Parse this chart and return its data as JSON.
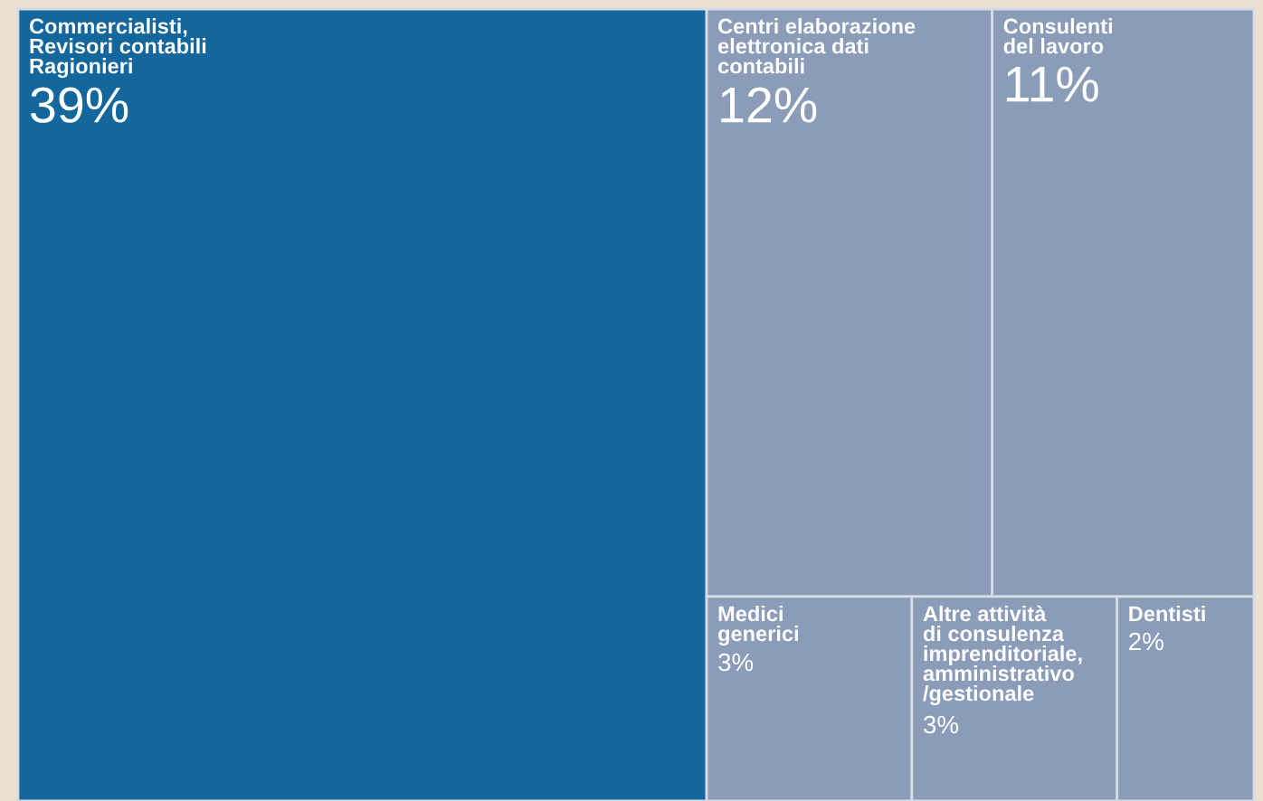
{
  "chart_data": {
    "type": "other",
    "categories": [
      "Commercialisti,\nRevisori contabili\nRagionieri",
      "Centri elaborazione\nelettronica dati\ncontabili",
      "Consulenti\ndel lavoro",
      "Medici\ngenerici",
      "Altre attività\ndi consulenza\nimprenditoriale,\namministrativo\n/gestionale",
      "Dentisti"
    ],
    "values": [
      39,
      12,
      11,
      3,
      3,
      2
    ],
    "value_labels": [
      "39%",
      "12%",
      "11%",
      "3%",
      "3%",
      "2%"
    ],
    "colors": [
      "#13679c",
      "#8a9cb8",
      "#8a9cb8",
      "#8a9cb8",
      "#8a9cb8",
      "#8a9cb8"
    ]
  }
}
